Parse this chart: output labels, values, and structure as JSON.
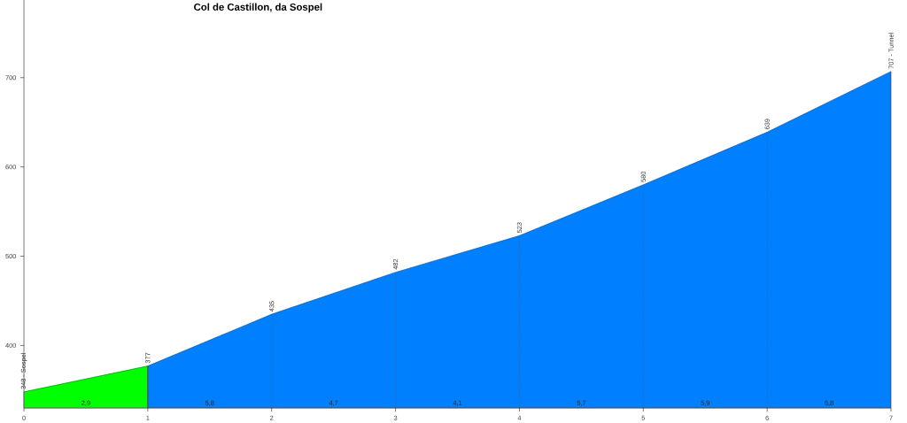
{
  "chart_data": {
    "type": "area",
    "title": "Col de Castillon, da Sospel",
    "xlim": [
      0,
      7
    ],
    "ylim": [
      330,
      787
    ],
    "xticks": [
      0,
      1,
      2,
      3,
      4,
      5,
      6,
      7
    ],
    "yticks": [
      400,
      500,
      600,
      700
    ],
    "series": [
      {
        "color": "#00ff00",
        "x": [
          0,
          1
        ],
        "values": [
          348,
          377
        ],
        "value_labels": [
          "348 - Sospel",
          "377"
        ]
      },
      {
        "color": "#0080ff",
        "x": [
          1,
          2,
          3,
          4,
          5,
          6,
          7
        ],
        "values": [
          377,
          435,
          482,
          523,
          580,
          639,
          707
        ],
        "value_labels": [
          null,
          "435",
          "482",
          "523",
          "580",
          "639",
          "707 - Tunnel"
        ]
      }
    ],
    "ref_lines": [
      {
        "axis": "x",
        "value": 1,
        "line_style": "dotted"
      },
      {
        "axis": "x",
        "value": 2,
        "line_style": "dotted"
      },
      {
        "axis": "x",
        "value": 3,
        "line_style": "dotted"
      },
      {
        "axis": "x",
        "value": 4,
        "line_style": "dotted"
      },
      {
        "axis": "x",
        "value": 5,
        "line_style": "dotted"
      },
      {
        "axis": "x",
        "value": 6,
        "line_style": "dotted"
      }
    ],
    "annotations": [
      "2,9",
      "5,8",
      "4,7",
      "4,1",
      "5,7",
      "5,9",
      "6,8"
    ]
  }
}
